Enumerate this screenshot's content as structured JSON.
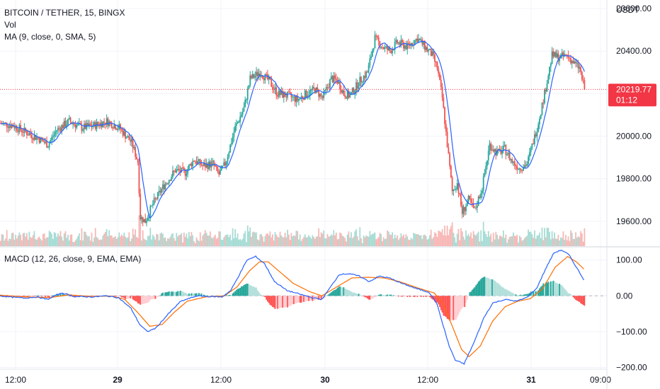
{
  "legend": {
    "symbol": "BITCOIN / TETHER, 15, BINGX",
    "volume": "Vol",
    "ma": "MA (9, close, 0, SMA, 5)",
    "macd": "MACD (12, 26, close, 9, EMA, EMA)"
  },
  "price_axis": {
    "currency": "USDT",
    "last_price": "20219.77",
    "countdown": "01:12"
  },
  "colors": {
    "up": "#26a69a",
    "down": "#ef5350",
    "ma_line": "#2962ff",
    "signal_line": "#ff6d00",
    "macd_line": "#2962ff",
    "price_badge": "#f23645",
    "grid": "#f0f3fa"
  },
  "chart_data": [
    {
      "type": "candlestick",
      "title": "BITCOIN / TETHER, 15, BINGX",
      "ylim": [
        19480,
        20640
      ],
      "yticks": [
        19600,
        19800,
        20000,
        20200,
        20400,
        20600
      ],
      "ytick_labels": [
        "19600.00",
        "19800.00",
        "20000.00",
        "",
        "20400.00",
        "20600.00"
      ],
      "xticks": [
        "12:00",
        "29",
        "12:00",
        "30",
        "12:00",
        "31",
        "09:00"
      ],
      "last_price": 20219.77,
      "close_path": [
        [
          0,
          20060
        ],
        [
          10,
          20050
        ],
        [
          20,
          20020
        ],
        [
          30,
          19990
        ],
        [
          38,
          19960
        ],
        [
          45,
          20030
        ],
        [
          55,
          20070
        ],
        [
          65,
          20040
        ],
        [
          75,
          20050
        ],
        [
          85,
          20070
        ],
        [
          95,
          20040
        ],
        [
          105,
          19970
        ],
        [
          110,
          19880
        ],
        [
          112,
          19620
        ],
        [
          116,
          19600
        ],
        [
          122,
          19680
        ],
        [
          130,
          19760
        ],
        [
          140,
          19840
        ],
        [
          148,
          19830
        ],
        [
          155,
          19890
        ],
        [
          162,
          19860
        ],
        [
          170,
          19870
        ],
        [
          175,
          19820
        ],
        [
          180,
          19870
        ],
        [
          188,
          20040
        ],
        [
          195,
          20130
        ],
        [
          200,
          20270
        ],
        [
          208,
          20300
        ],
        [
          215,
          20260
        ],
        [
          222,
          20200
        ],
        [
          230,
          20190
        ],
        [
          238,
          20170
        ],
        [
          245,
          20200
        ],
        [
          252,
          20220
        ],
        [
          258,
          20180
        ],
        [
          265,
          20270
        ],
        [
          270,
          20260
        ],
        [
          275,
          20200
        ],
        [
          280,
          20190
        ],
        [
          288,
          20260
        ],
        [
          294,
          20300
        ],
        [
          300,
          20460
        ],
        [
          306,
          20420
        ],
        [
          312,
          20400
        ],
        [
          318,
          20440
        ],
        [
          326,
          20420
        ],
        [
          334,
          20460
        ],
        [
          340,
          20420
        ],
        [
          346,
          20380
        ],
        [
          350,
          20320
        ],
        [
          354,
          20180
        ],
        [
          358,
          19960
        ],
        [
          362,
          19740
        ],
        [
          366,
          19780
        ],
        [
          370,
          19640
        ],
        [
          375,
          19700
        ],
        [
          380,
          19650
        ],
        [
          386,
          19760
        ],
        [
          392,
          19960
        ],
        [
          398,
          19920
        ],
        [
          404,
          19940
        ],
        [
          410,
          19880
        ],
        [
          416,
          19850
        ],
        [
          422,
          19870
        ],
        [
          430,
          20040
        ],
        [
          436,
          20200
        ],
        [
          442,
          20380
        ],
        [
          448,
          20370
        ],
        [
          454,
          20380
        ],
        [
          460,
          20340
        ],
        [
          464,
          20320
        ],
        [
          468,
          20219.77
        ]
      ],
      "ma": {
        "name": "MA (9, close, 0, SMA, 5)",
        "period": 9
      }
    },
    {
      "type": "bar",
      "title": "Vol",
      "note": "volume histogram in price pane, no axis values shown"
    },
    {
      "type": "line",
      "title": "MACD (12, 26, close, 9, EMA, EMA)",
      "ylim": [
        -205,
        135
      ],
      "yticks": [
        -200,
        -100,
        0,
        100
      ],
      "ytick_labels": [
        "−200.00",
        "−100.00",
        "0.00",
        "100.00"
      ],
      "macd_path": [
        [
          0,
          0
        ],
        [
          10,
          -4
        ],
        [
          20,
          -6
        ],
        [
          30,
          -3
        ],
        [
          38,
          -10
        ],
        [
          45,
          2
        ],
        [
          50,
          8
        ],
        [
          60,
          -2
        ],
        [
          75,
          -3
        ],
        [
          85,
          0
        ],
        [
          95,
          -5
        ],
        [
          105,
          -35
        ],
        [
          112,
          -80
        ],
        [
          118,
          -100
        ],
        [
          125,
          -90
        ],
        [
          135,
          -50
        ],
        [
          145,
          -15
        ],
        [
          158,
          0
        ],
        [
          168,
          -2
        ],
        [
          178,
          -3
        ],
        [
          185,
          15
        ],
        [
          192,
          60
        ],
        [
          198,
          100
        ],
        [
          205,
          110
        ],
        [
          212,
          90
        ],
        [
          220,
          40
        ],
        [
          230,
          15
        ],
        [
          240,
          5
        ],
        [
          250,
          -5
        ],
        [
          258,
          -10
        ],
        [
          266,
          30
        ],
        [
          272,
          60
        ],
        [
          280,
          62
        ],
        [
          288,
          55
        ],
        [
          296,
          40
        ],
        [
          304,
          55
        ],
        [
          312,
          50
        ],
        [
          322,
          35
        ],
        [
          334,
          20
        ],
        [
          344,
          10
        ],
        [
          350,
          -20
        ],
        [
          355,
          -80
        ],
        [
          360,
          -140
        ],
        [
          365,
          -180
        ],
        [
          372,
          -190
        ],
        [
          380,
          -130
        ],
        [
          388,
          -60
        ],
        [
          395,
          -20
        ],
        [
          405,
          -10
        ],
        [
          414,
          -15
        ],
        [
          422,
          -5
        ],
        [
          430,
          20
        ],
        [
          438,
          80
        ],
        [
          444,
          120
        ],
        [
          450,
          128
        ],
        [
          456,
          115
        ],
        [
          462,
          80
        ],
        [
          468,
          45
        ]
      ],
      "signal_path": [
        [
          0,
          2
        ],
        [
          20,
          -3
        ],
        [
          40,
          -5
        ],
        [
          55,
          3
        ],
        [
          70,
          -1
        ],
        [
          90,
          -1
        ],
        [
          100,
          -10
        ],
        [
          110,
          -45
        ],
        [
          120,
          -85
        ],
        [
          130,
          -80
        ],
        [
          140,
          -45
        ],
        [
          150,
          -15
        ],
        [
          165,
          -3
        ],
        [
          180,
          0
        ],
        [
          190,
          25
        ],
        [
          200,
          70
        ],
        [
          208,
          95
        ],
        [
          215,
          95
        ],
        [
          225,
          65
        ],
        [
          235,
          35
        ],
        [
          248,
          12
        ],
        [
          258,
          0
        ],
        [
          270,
          25
        ],
        [
          282,
          50
        ],
        [
          295,
          52
        ],
        [
          308,
          50
        ],
        [
          320,
          40
        ],
        [
          335,
          22
        ],
        [
          348,
          8
        ],
        [
          355,
          -20
        ],
        [
          362,
          -80
        ],
        [
          370,
          -150
        ],
        [
          376,
          -170
        ],
        [
          385,
          -140
        ],
        [
          395,
          -70
        ],
        [
          405,
          -30
        ],
        [
          415,
          -15
        ],
        [
          425,
          -8
        ],
        [
          435,
          20
        ],
        [
          445,
          80
        ],
        [
          455,
          110
        ],
        [
          462,
          95
        ],
        [
          468,
          75
        ]
      ]
    }
  ]
}
